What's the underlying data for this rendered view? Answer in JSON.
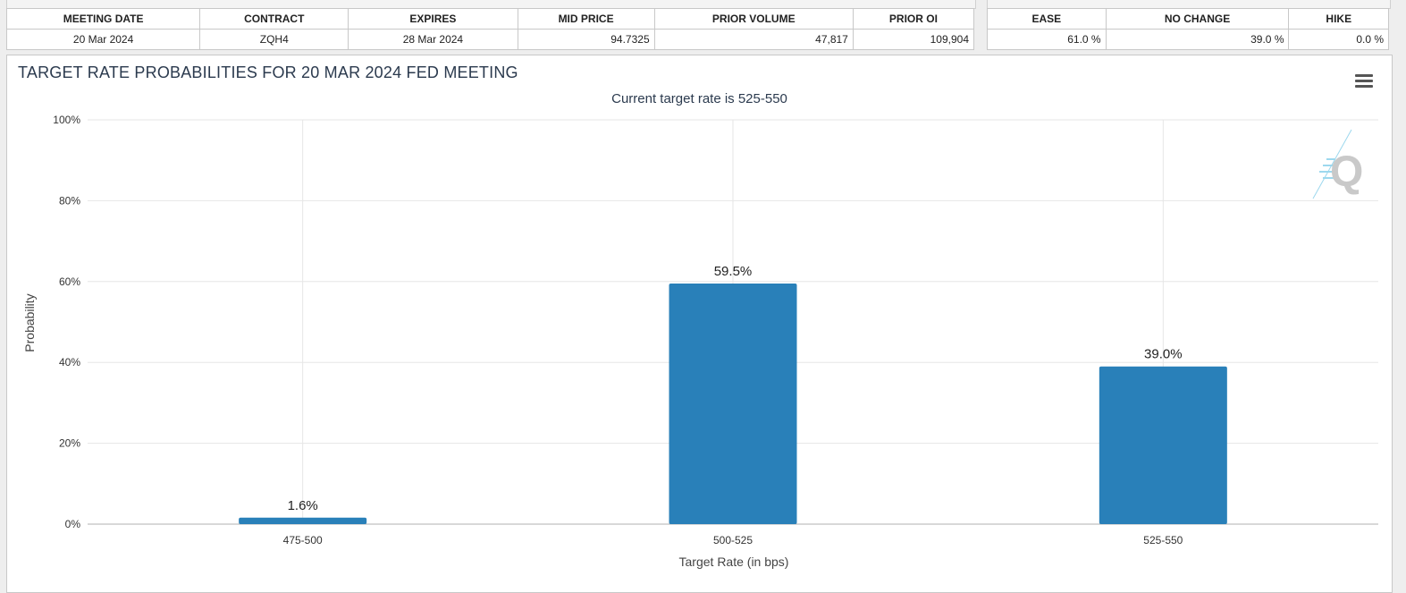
{
  "meeting_table": {
    "headers": [
      "MEETING DATE",
      "CONTRACT",
      "EXPIRES",
      "MID PRICE",
      "PRIOR VOLUME",
      "PRIOR OI"
    ],
    "row": [
      "20 Mar 2024",
      "ZQH4",
      "28 Mar 2024",
      "94.7325",
      "47,817",
      "109,904"
    ]
  },
  "prob_table": {
    "headers": [
      "EASE",
      "NO CHANGE",
      "HIKE"
    ],
    "row": [
      "61.0 %",
      "39.0 %",
      "0.0 %"
    ]
  },
  "chart_data": {
    "type": "bar",
    "title": "TARGET RATE PROBABILITIES FOR 20 MAR 2024 FED MEETING",
    "subtitle": "Current target rate is 525-550",
    "xlabel": "Target Rate (in bps)",
    "ylabel": "Probability",
    "categories": [
      "475-500",
      "500-525",
      "525-550"
    ],
    "values": [
      1.6,
      59.5,
      39.0
    ],
    "data_labels": [
      "1.6%",
      "59.5%",
      "39.0%"
    ],
    "ylim": [
      0,
      100
    ],
    "yticks": [
      0,
      20,
      40,
      60,
      80,
      100
    ],
    "ytick_labels": [
      "0%",
      "20%",
      "40%",
      "60%",
      "80%",
      "100%"
    ],
    "grid": true,
    "bar_color": "#2980b9"
  },
  "icons": {
    "menu": "hamburger-menu-icon",
    "watermark": "q-logo-watermark"
  }
}
